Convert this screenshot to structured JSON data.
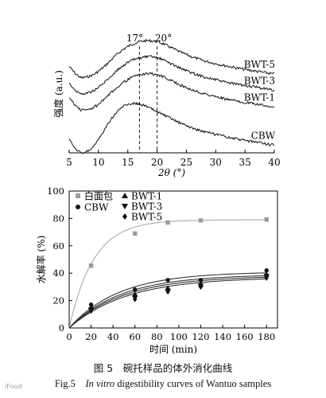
{
  "figure": {
    "caption_cn": "图 5　碗托样品的体外消化曲线",
    "caption_en_prefix": "Fig.5",
    "caption_en_italic": "In vitro",
    "caption_en_rest": "digestibility curves of Wantuo samples",
    "watermark": "iFood"
  },
  "chart_data": [
    {
      "type": "line",
      "ylabel": "强度 (a.u.)",
      "xlabel": "2θ (°)",
      "xlim": [
        5,
        40
      ],
      "xticks": [
        5,
        10,
        15,
        20,
        25,
        30,
        35,
        40
      ],
      "annotations": [
        {
          "text": "17°",
          "x": 17
        },
        {
          "text": "20°",
          "x": 20
        }
      ],
      "series": [
        {
          "name": "BWT-5",
          "offset": 3,
          "x": [
            5,
            6,
            7,
            8,
            9,
            10,
            11,
            12,
            13,
            14,
            15,
            16,
            17,
            18,
            19,
            20,
            21,
            22,
            23,
            24,
            26,
            28,
            30,
            32,
            34,
            36,
            38,
            40
          ],
          "y": [
            1.6,
            1.25,
            1.0,
            1.05,
            1.15,
            1.35,
            1.6,
            1.9,
            2.2,
            2.45,
            2.65,
            2.8,
            2.9,
            2.95,
            2.95,
            2.9,
            2.8,
            2.65,
            2.5,
            2.35,
            2.1,
            1.9,
            1.75,
            1.62,
            1.5,
            1.4,
            1.3,
            1.2
          ]
        },
        {
          "name": "BWT-3",
          "offset": 2,
          "x": [
            5,
            6,
            7,
            8,
            9,
            10,
            11,
            12,
            13,
            14,
            15,
            16,
            17,
            18,
            19,
            20,
            21,
            22,
            23,
            24,
            26,
            28,
            30,
            32,
            34,
            36,
            38,
            40
          ],
          "y": [
            1.55,
            1.15,
            0.95,
            1.0,
            1.1,
            1.3,
            1.55,
            1.85,
            2.15,
            2.4,
            2.6,
            2.75,
            2.85,
            2.9,
            2.9,
            2.85,
            2.75,
            2.6,
            2.45,
            2.3,
            2.05,
            1.85,
            1.7,
            1.55,
            1.45,
            1.35,
            1.25,
            1.15
          ]
        },
        {
          "name": "BWT-1",
          "offset": 1,
          "x": [
            5,
            6,
            7,
            8,
            9,
            10,
            11,
            12,
            13,
            14,
            15,
            16,
            17,
            18,
            19,
            20,
            21,
            22,
            23,
            24,
            26,
            28,
            30,
            32,
            34,
            36,
            38,
            40
          ],
          "y": [
            1.6,
            1.2,
            0.95,
            0.95,
            1.05,
            1.25,
            1.5,
            1.8,
            2.1,
            2.35,
            2.55,
            2.7,
            2.8,
            2.85,
            2.85,
            2.8,
            2.7,
            2.55,
            2.4,
            2.25,
            2.0,
            1.8,
            1.65,
            1.5,
            1.4,
            1.3,
            1.2,
            1.1
          ]
        },
        {
          "name": "CBW",
          "offset": 0,
          "x": [
            5,
            6,
            7,
            8,
            9,
            10,
            11,
            12,
            13,
            14,
            15,
            16,
            17,
            18,
            19,
            20,
            21,
            22,
            23,
            24,
            26,
            28,
            30,
            32,
            34,
            36,
            38,
            40
          ],
          "y": [
            1.2,
            0.7,
            0.5,
            0.55,
            0.8,
            1.2,
            1.7,
            2.2,
            2.6,
            2.9,
            3.05,
            3.1,
            3.05,
            2.95,
            2.8,
            2.65,
            2.5,
            2.35,
            2.2,
            2.05,
            1.8,
            1.6,
            1.45,
            1.32,
            1.2,
            1.1,
            1.0,
            0.9
          ]
        }
      ]
    },
    {
      "type": "scatter",
      "ylabel": "水解率 (%)",
      "xlabel": "时间 (min)",
      "xlim": [
        0,
        190
      ],
      "ylim": [
        0,
        100
      ],
      "xticks": [
        0,
        20,
        40,
        60,
        80,
        100,
        120,
        140,
        160,
        180
      ],
      "yticks": [
        0,
        20,
        40,
        60,
        80,
        100
      ],
      "legend": "top-left",
      "series": [
        {
          "name": "白面包",
          "marker": "square",
          "color": "#999999",
          "x": [
            20,
            60,
            90,
            120,
            180
          ],
          "y": [
            45.5,
            69,
            77,
            78.5,
            79.2
          ]
        },
        {
          "name": "CBW",
          "marker": "circle",
          "color": "#111111",
          "x": [
            20,
            60,
            90,
            120,
            180
          ],
          "y": [
            17,
            28,
            35,
            35,
            42
          ]
        },
        {
          "name": "BWT-1",
          "marker": "triangle-up",
          "color": "#111111",
          "x": [
            20,
            60,
            90,
            120,
            180
          ],
          "y": [
            15,
            24.5,
            29,
            32,
            39
          ]
        },
        {
          "name": "BWT-3",
          "marker": "triangle-down",
          "color": "#111111",
          "x": [
            20,
            60,
            90,
            120,
            180
          ],
          "y": [
            13.5,
            22,
            27,
            31,
            38
          ]
        },
        {
          "name": "BWT-5",
          "marker": "diamond",
          "color": "#111111",
          "x": [
            20,
            60,
            90,
            120,
            180
          ],
          "y": [
            12.5,
            21,
            26.5,
            30,
            36.5
          ]
        }
      ],
      "fits": [
        {
          "for": "白面包",
          "color": "#aaaaaa",
          "plateau": 79,
          "k": 0.045
        },
        {
          "for": "CBW",
          "color": "#333333",
          "plateau": 41,
          "k": 0.022
        },
        {
          "for": "BWT-1",
          "color": "#333333",
          "plateau": 39,
          "k": 0.021
        },
        {
          "for": "BWT-3",
          "color": "#333333",
          "plateau": 38,
          "k": 0.02
        },
        {
          "for": "BWT-5",
          "color": "#333333",
          "plateau": 37,
          "k": 0.019
        }
      ]
    }
  ]
}
